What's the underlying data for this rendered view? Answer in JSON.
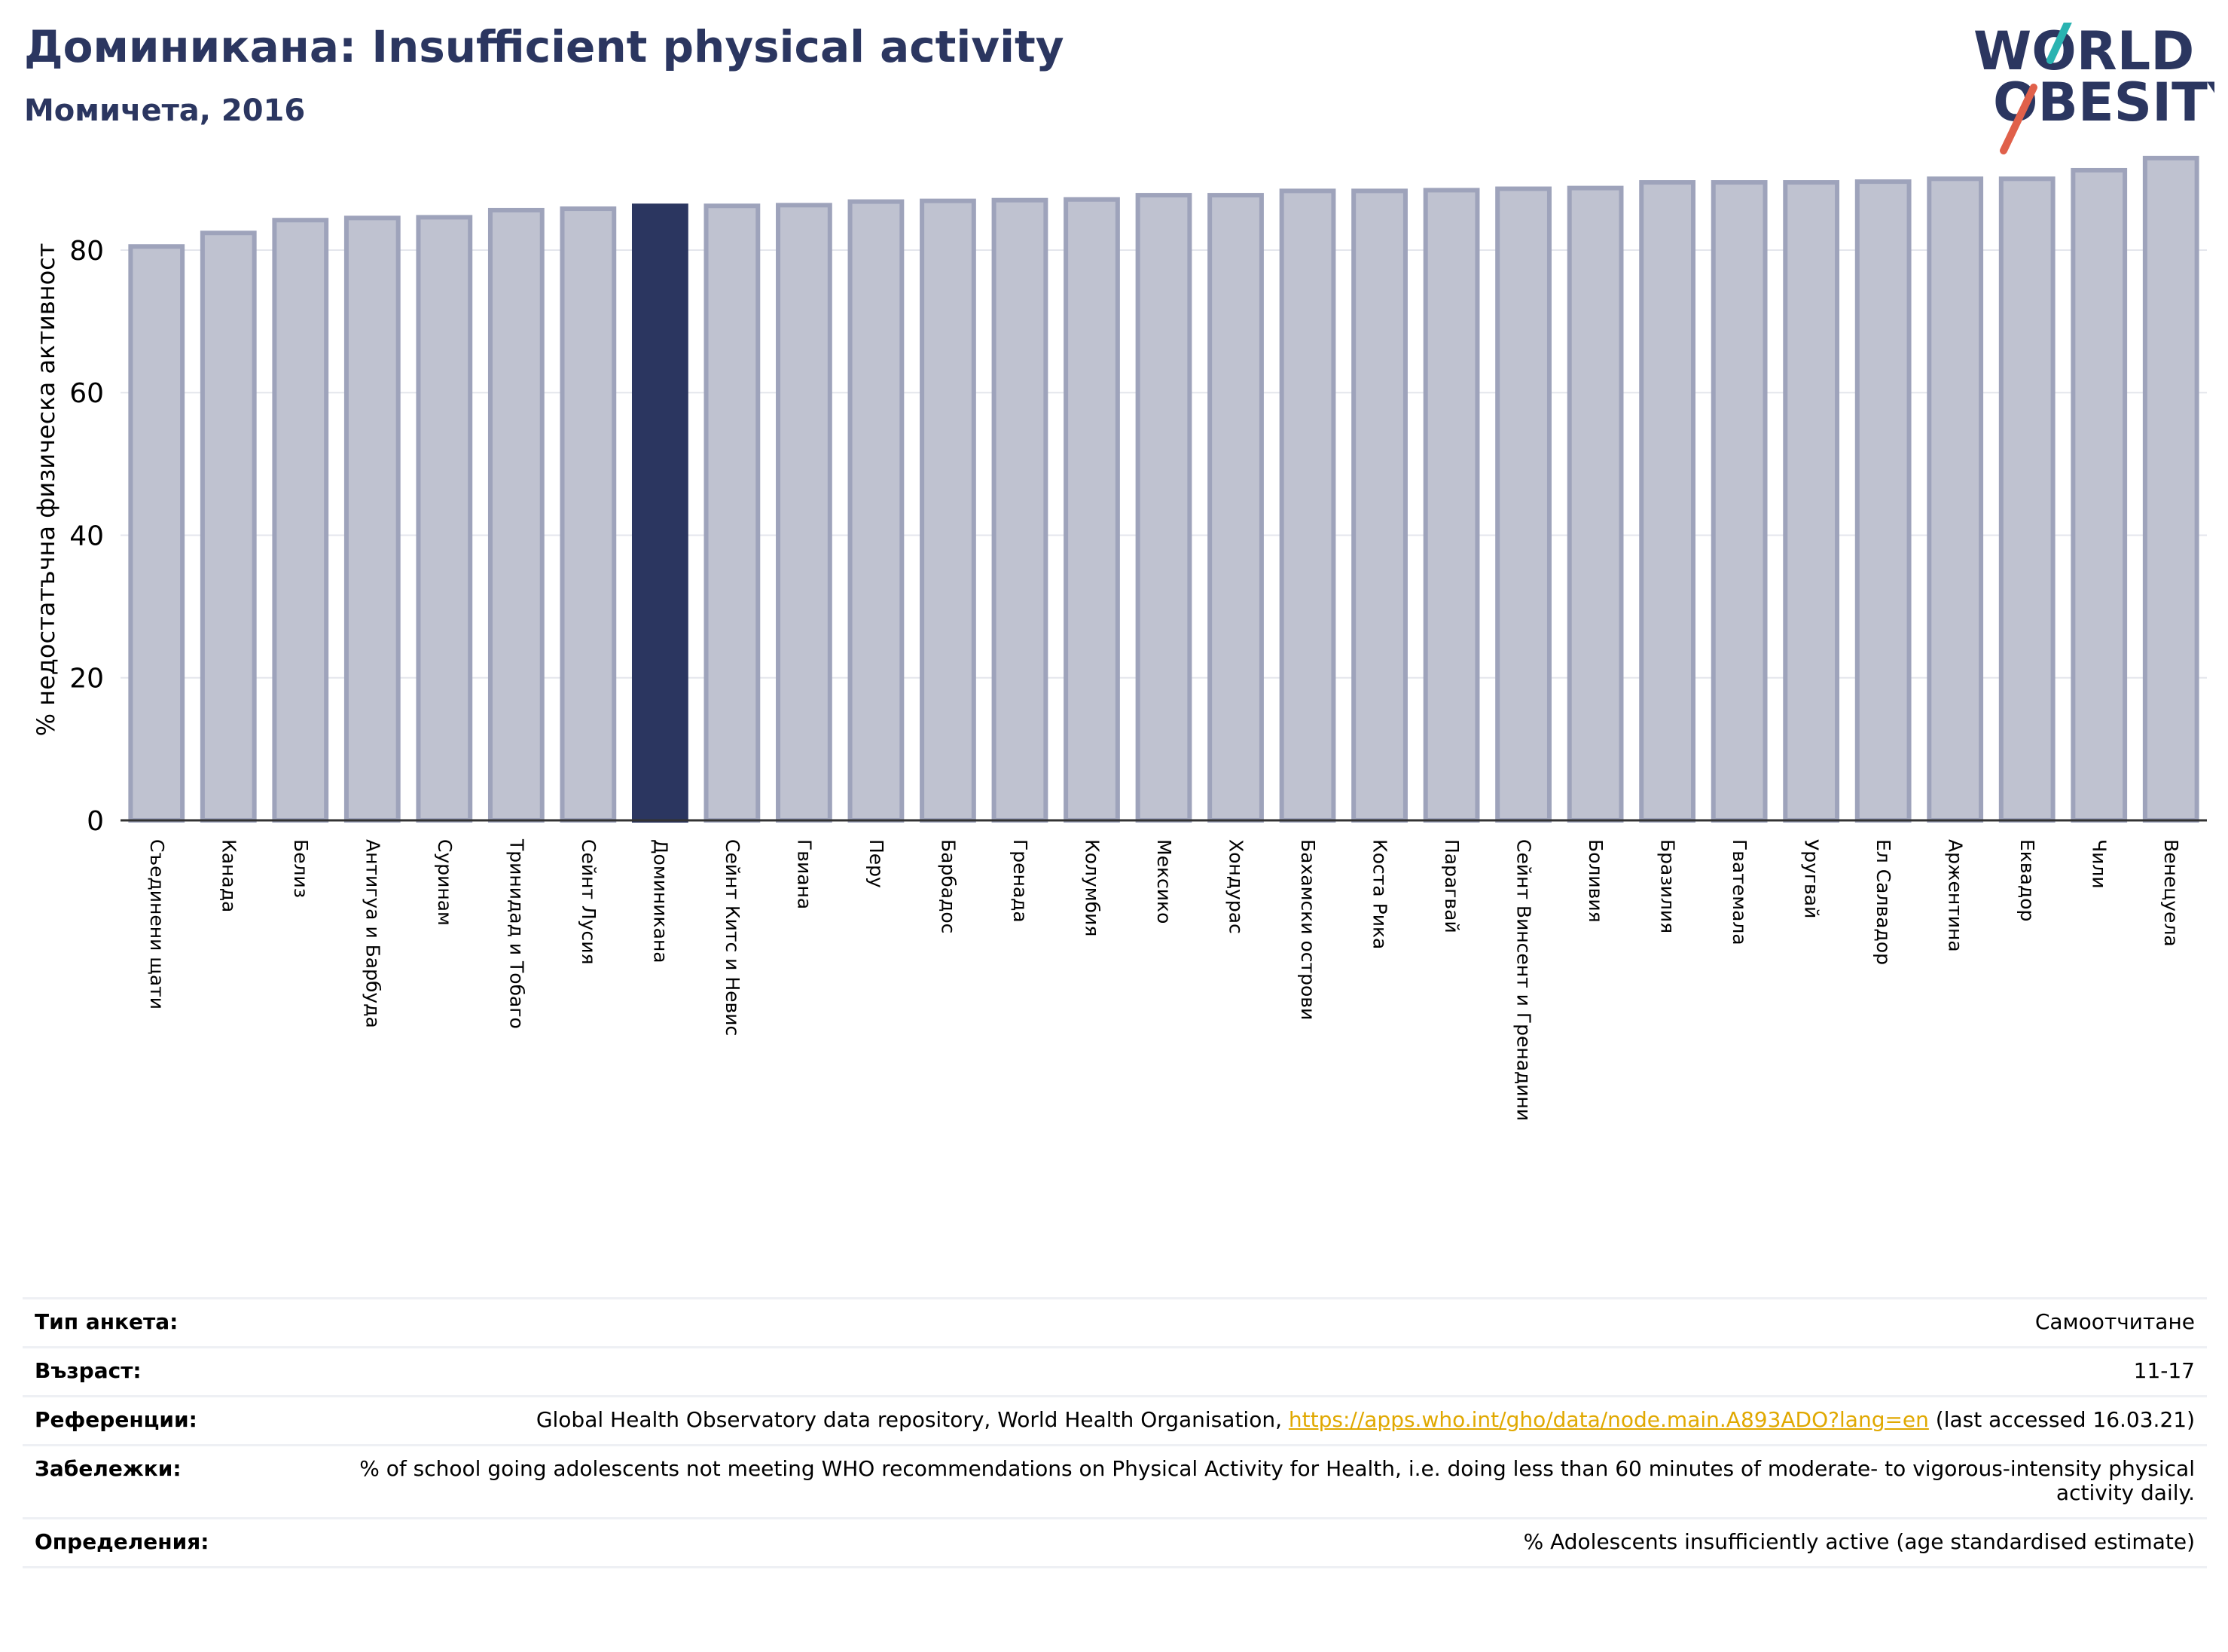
{
  "header": {
    "title": "Доминикана: Insufficient physical activity",
    "subtitle": "Момичета, 2016"
  },
  "logo": {
    "line1": "WORLD",
    "line2": "OBESITY",
    "accent_teal": "#2ab3b1",
    "accent_red": "#e0604a"
  },
  "colors": {
    "bar": "#bfc2d0",
    "bar_edge": "#9ea3bb",
    "highlight": "#2b3660",
    "axis": "#333333",
    "grid": "#e4e6ec"
  },
  "chart_data": {
    "type": "bar",
    "ylabel": "% недостатъчна физическа активност",
    "ylim": [
      0,
      95
    ],
    "yticks": [
      0,
      20,
      40,
      60,
      80
    ],
    "grid": true,
    "highlight": "Доминикана",
    "categories": [
      "Съединени щати",
      "Канада",
      "Белиз",
      "Антигуа и Барбуда",
      "Суринам",
      "Тринидад и Тобаго",
      "Сейнт Лусия",
      "Доминикана",
      "Сейнт Китс и Невис",
      "Гвиана",
      "Перу",
      "Барбадос",
      "Гренада",
      "Колумбия",
      "Мексико",
      "Хондурас",
      "Бахамски острови",
      "Коста Рика",
      "Парагвай",
      "Сейнт Винсент и Гренадини",
      "Боливия",
      "Бразилия",
      "Гватемала",
      "Уругвай",
      "Ел Салвадор",
      "Аржентина",
      "Еквадор",
      "Чили",
      "Венецуела"
    ],
    "values": [
      80.5,
      82.4,
      84.2,
      84.5,
      84.6,
      85.6,
      85.8,
      86.2,
      86.2,
      86.3,
      86.8,
      86.9,
      87.0,
      87.1,
      87.7,
      87.7,
      88.3,
      88.3,
      88.4,
      88.6,
      88.7,
      89.5,
      89.5,
      89.5,
      89.6,
      90.0,
      90.0,
      91.2,
      92.9
    ]
  },
  "meta": {
    "survey_type_label": "Тип анкета:",
    "survey_type_value": "Самоотчитане",
    "age_label": "Възраст:",
    "age_value": "11-17",
    "references_label": "Референции:",
    "references_text_before": "Global Health Observatory data repository, World Health Organisation, ",
    "references_link": "https://apps.who.int/gho/data/node.main.A893ADO?lang=en",
    "references_text_after": " (last accessed 16.03.21)",
    "notes_label": "Забележки:",
    "notes_value": "% of school going adolescents not meeting WHO recommendations on Physical Activity for Health, i.e. doing less than 60 minutes of moderate- to vigorous-intensity physical activity daily.",
    "definitions_label": "Определения:",
    "definitions_value": "% Adolescents insufficiently active (age standardised estimate)"
  }
}
